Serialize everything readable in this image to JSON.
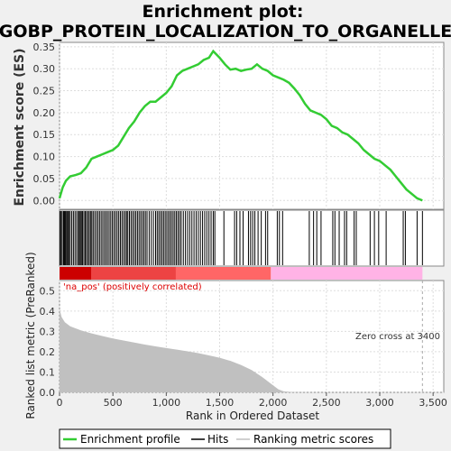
{
  "chart_data": {
    "type": "line",
    "title_line1": "Enrichment plot:",
    "title_line2": "GOBP_PROTEIN_LOCALIZATION_TO_ORGANELLE",
    "ylabel_top": "Enrichment score (ES)",
    "ylabel_bottom": "Ranked list metric (PreRanked)",
    "xlabel": "Rank in Ordered Dataset",
    "xlim": [
      0,
      3600
    ],
    "ylim_es": [
      -0.02,
      0.36
    ],
    "ylim_metric": [
      0,
      0.55
    ],
    "x_ticks": [
      "0",
      "500",
      "1,000",
      "1,500",
      "2,000",
      "2,500",
      "3,000",
      "3,500"
    ],
    "x_tick_values": [
      0,
      500,
      1000,
      1500,
      2000,
      2500,
      3000,
      3500
    ],
    "es_ticks": [
      "0.00",
      "0.05",
      "0.10",
      "0.15",
      "0.20",
      "0.25",
      "0.30",
      "0.35"
    ],
    "es_tick_values": [
      0,
      0.05,
      0.1,
      0.15,
      0.2,
      0.25,
      0.3,
      0.35
    ],
    "metric_ticks": [
      "0.0",
      "0.1",
      "0.2",
      "0.3",
      "0.4",
      "0.5"
    ],
    "metric_tick_values": [
      0,
      0.1,
      0.2,
      0.3,
      0.4,
      0.5
    ],
    "es_curve": {
      "x": [
        0,
        30,
        60,
        100,
        150,
        200,
        250,
        300,
        350,
        400,
        450,
        500,
        550,
        600,
        650,
        700,
        750,
        800,
        850,
        900,
        950,
        1000,
        1050,
        1100,
        1150,
        1200,
        1250,
        1300,
        1350,
        1400,
        1440,
        1500,
        1550,
        1600,
        1650,
        1700,
        1750,
        1800,
        1850,
        1900,
        1950,
        2000,
        2050,
        2100,
        2150,
        2200,
        2250,
        2300,
        2350,
        2400,
        2450,
        2500,
        2550,
        2600,
        2650,
        2700,
        2750,
        2800,
        2850,
        2900,
        2950,
        3000,
        3050,
        3100,
        3150,
        3200,
        3250,
        3300,
        3350,
        3400
      ],
      "y": [
        0.005,
        0.03,
        0.045,
        0.055,
        0.058,
        0.062,
        0.075,
        0.095,
        0.1,
        0.105,
        0.11,
        0.115,
        0.125,
        0.145,
        0.165,
        0.18,
        0.2,
        0.215,
        0.225,
        0.225,
        0.235,
        0.245,
        0.26,
        0.285,
        0.295,
        0.3,
        0.305,
        0.31,
        0.32,
        0.325,
        0.34,
        0.325,
        0.31,
        0.298,
        0.3,
        0.295,
        0.298,
        0.3,
        0.31,
        0.3,
        0.295,
        0.285,
        0.28,
        0.275,
        0.268,
        0.255,
        0.24,
        0.22,
        0.205,
        0.2,
        0.195,
        0.185,
        0.17,
        0.165,
        0.155,
        0.15,
        0.14,
        0.13,
        0.115,
        0.105,
        0.095,
        0.09,
        0.08,
        0.07,
        0.055,
        0.04,
        0.025,
        0.015,
        0.005,
        0.0
      ]
    },
    "hits": [
      5,
      15,
      25,
      38,
      45,
      52,
      60,
      70,
      78,
      88,
      100,
      115,
      130,
      145,
      160,
      175,
      185,
      195,
      205,
      215,
      228,
      240,
      252,
      265,
      278,
      290,
      302,
      315,
      330,
      345,
      360,
      375,
      390,
      405,
      420,
      435,
      450,
      465,
      480,
      495,
      510,
      525,
      540,
      555,
      570,
      585,
      600,
      615,
      628,
      640,
      655,
      670,
      685,
      700,
      715,
      730,
      745,
      760,
      775,
      790,
      805,
      820,
      840,
      860,
      880,
      900,
      915,
      930,
      945,
      960,
      975,
      990,
      1005,
      1020,
      1035,
      1050,
      1065,
      1080,
      1095,
      1110,
      1125,
      1140,
      1160,
      1180,
      1200,
      1220,
      1240,
      1260,
      1280,
      1300,
      1320,
      1340,
      1360,
      1380,
      1400,
      1420,
      1440,
      1455,
      1540,
      1640,
      1660,
      1690,
      1720,
      1770,
      1790,
      1810,
      1830,
      1860,
      1890,
      1930,
      1950,
      2040,
      2060,
      2090,
      2340,
      2380,
      2410,
      2450,
      2560,
      2580,
      2620,
      2670,
      2690,
      2760,
      2780,
      2910,
      2950,
      2990,
      3060,
      3220,
      3240,
      3350,
      3400
    ],
    "metric_curve": {
      "x": [
        0,
        20,
        50,
        100,
        200,
        300,
        400,
        500,
        600,
        700,
        800,
        900,
        1000,
        1100,
        1200,
        1300,
        1400,
        1500,
        1600,
        1700,
        1800,
        1900,
        1950,
        2000,
        2050,
        2100,
        2200,
        2400,
        2800,
        3200,
        3400
      ],
      "y": [
        0.41,
        0.37,
        0.345,
        0.325,
        0.305,
        0.29,
        0.277,
        0.265,
        0.255,
        0.245,
        0.235,
        0.226,
        0.218,
        0.21,
        0.202,
        0.193,
        0.182,
        0.17,
        0.155,
        0.135,
        0.11,
        0.075,
        0.055,
        0.035,
        0.015,
        0.005,
        0.001,
        0.0,
        0.0,
        0.0,
        0.0
      ]
    },
    "heatmap_split": 1980,
    "zero_cross": 3400,
    "colors": {
      "es_line": "#33cc33",
      "hit_line": "#000000",
      "metric_fill": "#c0c0c0",
      "pos_dark": "#cc0000",
      "pos_light": "#ff6666",
      "neg": "#ffb3e6",
      "zero_cross_line": "#aaaaaa",
      "na_pos_text": "#dd0000"
    },
    "annotation_na_pos": "'na_pos' (positively correlated)",
    "annotation_zero_cross": "Zero cross at 3400",
    "legend": [
      "Enrichment profile",
      "Hits",
      "Ranking metric scores"
    ]
  }
}
